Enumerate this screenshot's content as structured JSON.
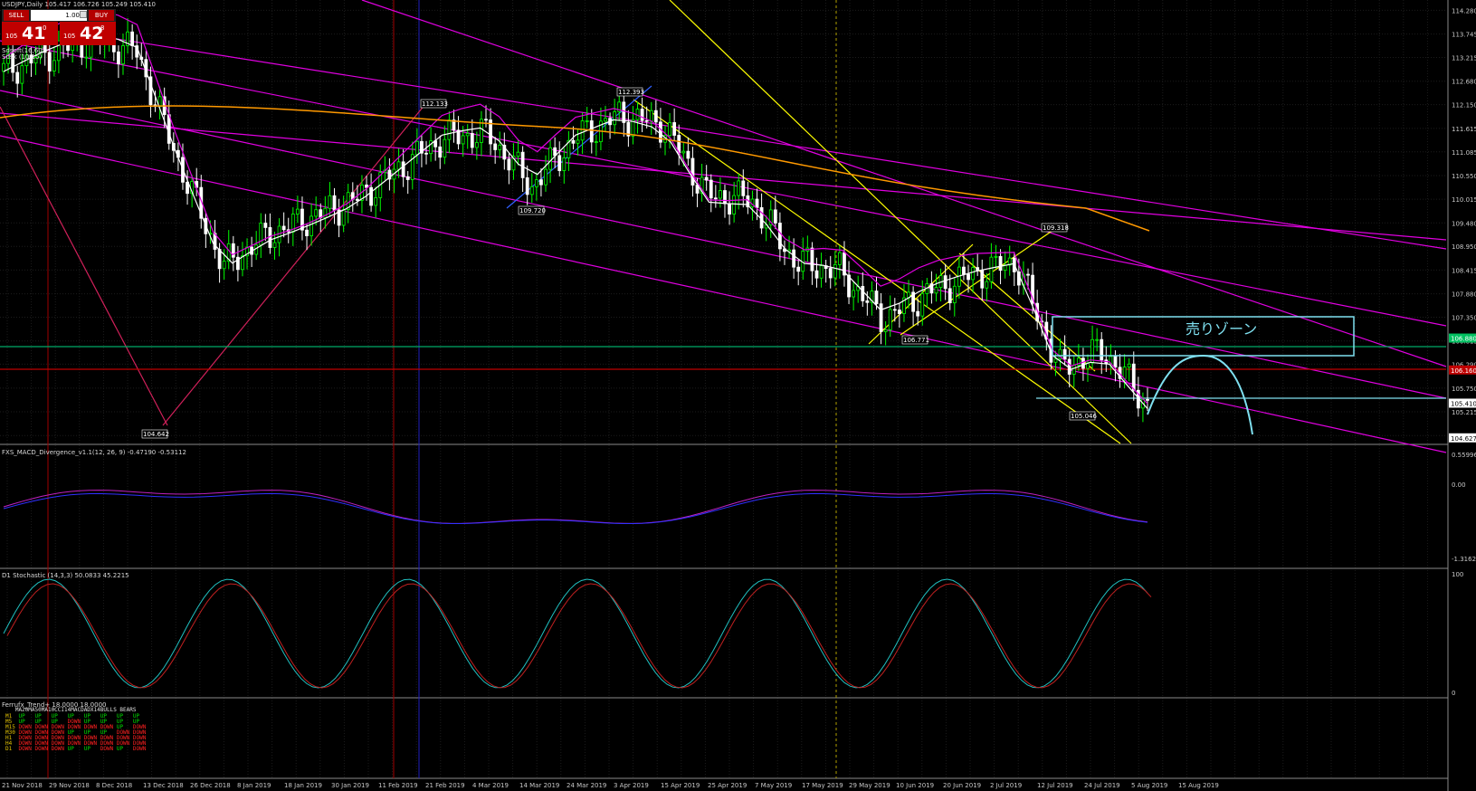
{
  "window": {
    "title": "USDJPY,Daily  105.417 106.726 105.249 105.410"
  },
  "trade_panel": {
    "sell_label": "SELL",
    "buy_label": "BUY",
    "lot": "1.00",
    "sell_price": {
      "prefix": "105",
      "big": "41",
      "sup": "0"
    },
    "buy_price": {
      "prefix": "105",
      "big": "42",
      "sup": "8"
    }
  },
  "overlay_labels": {
    "sma1": "Sdsoft(16,60)",
    "sma2": "Sdsk (10,15)"
  },
  "zone_label": "売りゾーン",
  "colors": {
    "bull": "#00ff00",
    "bear": "#ffffff",
    "magenta": "#e000e0",
    "yellow": "#ffff00",
    "orange": "#ff9900",
    "cyan": "#7fe0f0",
    "grid": "#1c1c1c"
  },
  "price_axis": [
    "114.280",
    "113.745",
    "113.215",
    "112.680",
    "112.150",
    "111.615",
    "111.085",
    "110.550",
    "110.015",
    "109.480",
    "108.950",
    "108.415",
    "107.880",
    "107.350",
    "106.815",
    "106.290",
    "105.750",
    "105.215",
    "104.680"
  ],
  "price_markers": {
    "current": "106.880",
    "red": "106.160",
    "bid": "105.410",
    "low": "104.627"
  },
  "annotations": [
    "112.133",
    "112.393",
    "109.720",
    "106.771",
    "109.318",
    "105.046",
    "104.642"
  ],
  "date_axis": [
    "21 Nov 2018",
    "29 Nov 2018",
    "8 Dec 2018",
    "13 Dec 2018",
    "26 Dec 2018",
    "8 Jan 2019",
    "18 Jan 2019",
    "30 Jan 2019",
    "11 Feb 2019",
    "21 Feb 2019",
    "4 Mar 2019",
    "14 Mar 2019",
    "24 Mar 2019",
    "3 Apr 2019",
    "15 Apr 2019",
    "25 Apr 2019",
    "7 May 2019",
    "17 May 2019",
    "29 May 2019",
    "10 Jun 2019",
    "20 Jun 2019",
    "2 Jul 2019",
    "12 Jul 2019",
    "24 Jul 2019",
    "5 Aug 2019",
    "15 Aug 2019"
  ],
  "macd": {
    "title": "FXS_MACD_Divergence_v1.1(12, 26, 9) -0.47190 -0.53112",
    "axis": [
      "0.55996",
      "0.00",
      "-1.31626"
    ]
  },
  "stoch": {
    "title": "D1 Stochastic (14,3,3) 50.0833 45.2215",
    "axis": [
      "100",
      "0"
    ]
  },
  "trend": {
    "title": "Ferrufx_Trend+ 18.0000 18.0000",
    "header": "   MA20MA50MA10CCI14MACDADX14BULLS BEARS",
    "rows": [
      {
        "tf": "M1",
        "vals": [
          "UP",
          "UP",
          "UP",
          "UP",
          "UP",
          "UP",
          "UP",
          "UP"
        ]
      },
      {
        "tf": "M5",
        "vals": [
          "UP",
          "UP",
          "UP",
          "DOWN",
          "UP",
          "UP",
          "UP",
          "UP"
        ]
      },
      {
        "tf": "M15",
        "vals": [
          "DOWN",
          "DOWN",
          "DOWN",
          "DOWN",
          "DOWN",
          "DOWN",
          "UP",
          "DOWN"
        ]
      },
      {
        "tf": "M30",
        "vals": [
          "DOWN",
          "DOWN",
          "DOWN",
          "UP",
          "UP",
          "UP",
          "DOWN",
          "DOWN"
        ]
      },
      {
        "tf": "H1",
        "vals": [
          "DOWN",
          "DOWN",
          "DOWN",
          "DOWN",
          "DOWN",
          "DOWN",
          "DOWN",
          "DOWN"
        ]
      },
      {
        "tf": "H4",
        "vals": [
          "DOWN",
          "DOWN",
          "DOWN",
          "DOWN",
          "DOWN",
          "DOWN",
          "DOWN",
          "DOWN"
        ]
      },
      {
        "tf": "D1",
        "vals": [
          "DOWN",
          "DOWN",
          "DOWN",
          "UP",
          "UP",
          "DOWN",
          "UP",
          "DOWN"
        ]
      }
    ]
  },
  "chart_data": {
    "type": "candlestick",
    "symbol": "USDJPY",
    "timeframe": "Daily",
    "ylim": [
      104.5,
      114.35
    ],
    "x": [
      "21 Nov 2018",
      "29 Nov 2018",
      "8 Dec 2018",
      "13 Dec 2018",
      "26 Dec 2018",
      "8 Jan 2019",
      "18 Jan 2019",
      "30 Jan 2019",
      "11 Feb 2019",
      "21 Feb 2019",
      "4 Mar 2019",
      "14 Mar 2019",
      "24 Mar 2019",
      "3 Apr 2019",
      "15 Apr 2019",
      "25 Apr 2019",
      "7 May 2019",
      "17 May 2019",
      "29 May 2019",
      "10 Jun 2019",
      "20 Jun 2019",
      "2 Jul 2019",
      "12 Jul 2019",
      "24 Jul 2019",
      "5 Aug 2019",
      "15 Aug 2019",
      "20 Aug 2019"
    ],
    "close": [
      112.9,
      113.3,
      113.6,
      113.4,
      110.8,
      108.5,
      109.2,
      109.6,
      110.0,
      110.7,
      111.4,
      111.5,
      110.3,
      111.4,
      111.9,
      111.7,
      110.1,
      110.0,
      108.6,
      108.4,
      107.3,
      107.9,
      108.3,
      108.6,
      106.2,
      106.6,
      105.4
    ],
    "levels": [
      106.88,
      106.16,
      105.41,
      104.627
    ]
  }
}
